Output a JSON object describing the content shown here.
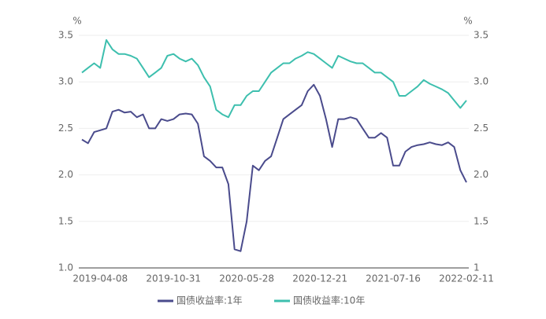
{
  "chart_data": {
    "type": "line",
    "categories": [
      null,
      null,
      null,
      "2019-04-08",
      null,
      null,
      null,
      null,
      null,
      null,
      null,
      null,
      null,
      null,
      null,
      "2019-10-31",
      null,
      null,
      null,
      null,
      null,
      null,
      null,
      null,
      null,
      null,
      null,
      "2020-05-28",
      null,
      null,
      null,
      null,
      null,
      null,
      null,
      null,
      null,
      null,
      null,
      "2020-12-21",
      null,
      null,
      null,
      null,
      null,
      null,
      null,
      null,
      null,
      null,
      null,
      "2021-07-16",
      null,
      null,
      null,
      null,
      null,
      null,
      null,
      null,
      null,
      null,
      null,
      "2022-02-11"
    ],
    "series": [
      {
        "name": "国债收益率:1年",
        "color": "#4a4b8c",
        "values": [
          2.38,
          2.34,
          2.46,
          2.48,
          2.5,
          2.68,
          2.7,
          2.67,
          2.68,
          2.62,
          2.65,
          2.5,
          2.5,
          2.6,
          2.58,
          2.6,
          2.65,
          2.66,
          2.65,
          2.55,
          2.2,
          2.15,
          2.08,
          2.08,
          1.9,
          1.2,
          1.18,
          1.5,
          2.1,
          2.05,
          2.15,
          2.2,
          2.4,
          2.6,
          2.65,
          2.7,
          2.75,
          2.9,
          2.97,
          2.85,
          2.6,
          2.3,
          2.6,
          2.6,
          2.62,
          2.6,
          2.5,
          2.4,
          2.4,
          2.45,
          2.4,
          2.1,
          2.1,
          2.25,
          2.3,
          2.32,
          2.33,
          2.35,
          2.33,
          2.32,
          2.35,
          2.3,
          2.05,
          1.92
        ]
      },
      {
        "name": "国债收益率:10年",
        "color": "#3dbfae",
        "values": [
          3.1,
          3.15,
          3.2,
          3.15,
          3.45,
          3.35,
          3.3,
          3.3,
          3.28,
          3.25,
          3.15,
          3.05,
          3.1,
          3.15,
          3.28,
          3.3,
          3.25,
          3.22,
          3.25,
          3.18,
          3.05,
          2.95,
          2.7,
          2.65,
          2.62,
          2.75,
          2.75,
          2.85,
          2.9,
          2.9,
          3.0,
          3.1,
          3.15,
          3.2,
          3.2,
          3.25,
          3.28,
          3.32,
          3.3,
          3.25,
          3.2,
          3.15,
          3.28,
          3.25,
          3.22,
          3.2,
          3.2,
          3.15,
          3.1,
          3.1,
          3.05,
          3.0,
          2.85,
          2.85,
          2.9,
          2.95,
          3.02,
          2.98,
          2.95,
          2.92,
          2.88,
          2.8,
          2.72,
          2.8
        ]
      }
    ],
    "y_unit": "%",
    "y2_unit": "%",
    "ylim": [
      1,
      3.5
    ],
    "yticks": [
      {
        "value": 1,
        "label": "1.0"
      },
      1.5,
      {
        "value": 2,
        "label": "2.0"
      },
      2.5,
      {
        "value": 3,
        "label": "3.0"
      },
      3.5
    ],
    "y2lim": [
      1,
      3.5
    ],
    "y2ticks": [
      1,
      1.5,
      {
        "value": 2,
        "label": "2.0"
      },
      2.5,
      {
        "value": 3,
        "label": "3.0"
      },
      3.5
    ],
    "grid": true
  }
}
